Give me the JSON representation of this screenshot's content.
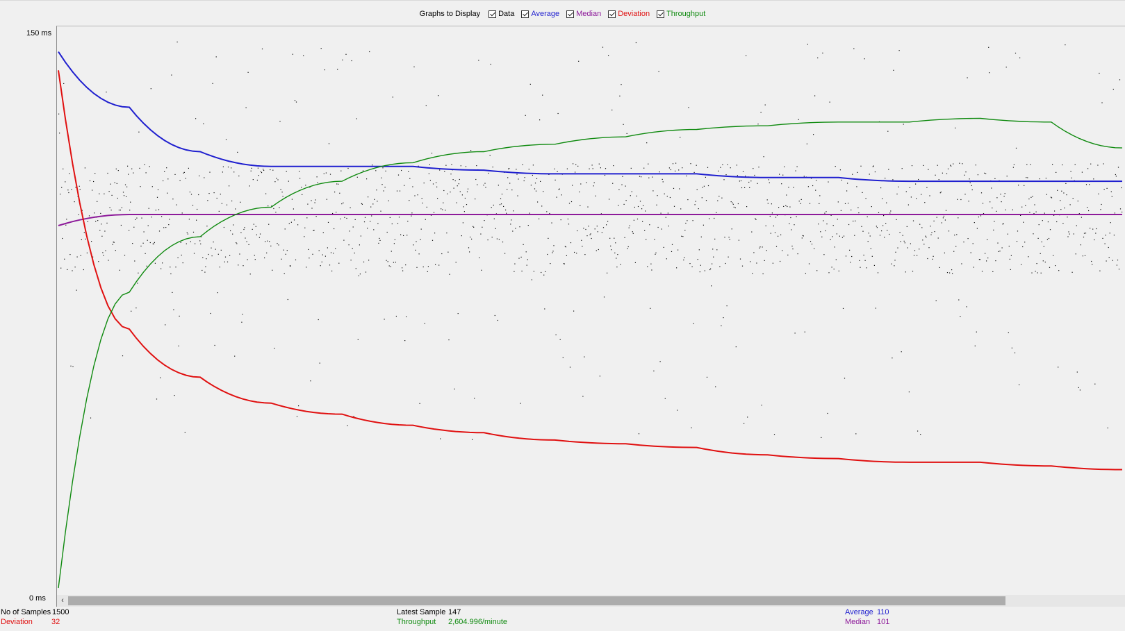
{
  "legend": {
    "title": "Graphs to Display",
    "items": [
      {
        "label": "Data",
        "checked": true,
        "color": "#000000"
      },
      {
        "label": "Average",
        "checked": true,
        "color": "#1f1fcf"
      },
      {
        "label": "Median",
        "checked": true,
        "color": "#8d1a9a"
      },
      {
        "label": "Deviation",
        "checked": true,
        "color": "#e01010"
      },
      {
        "label": "Throughput",
        "checked": true,
        "color": "#0f8a0f"
      }
    ]
  },
  "axis": {
    "y_top": "150  ms",
    "y_bottom": "0  ms"
  },
  "scrollbar": {
    "left_arrow": "‹"
  },
  "stats": {
    "samples_label": "No of Samples",
    "samples_value": "1500",
    "deviation_label": "Deviation",
    "deviation_value": "32",
    "latest_label": "Latest Sample",
    "latest_value": "147",
    "throughput_label": "Throughput",
    "throughput_value": "2,604.996/minute",
    "average_label": "Average",
    "average_value": "110",
    "median_label": "Median",
    "median_value": "101"
  },
  "chart_data": {
    "type": "scatter",
    "ylim": [
      0,
      150
    ],
    "x": [
      0,
      100,
      200,
      300,
      400,
      500,
      600,
      700,
      800,
      900,
      1000,
      1100,
      1200,
      1300,
      1400,
      1500
    ],
    "series": [
      {
        "name": "Average",
        "color": "#1f1fcf",
        "values": [
          145,
          130,
          118,
          114,
          114,
          114,
          113,
          112,
          112,
          112,
          111,
          111,
          110,
          110,
          110,
          110
        ]
      },
      {
        "name": "Median",
        "color": "#8d1a9a",
        "values": [
          98,
          101,
          101,
          101,
          101,
          101,
          101,
          101,
          101,
          101,
          101,
          101,
          101,
          101,
          101,
          101
        ]
      },
      {
        "name": "Deviation",
        "color": "#e01010",
        "values": [
          140,
          70,
          57,
          50,
          47,
          44,
          42,
          40,
          39,
          38,
          36,
          35,
          34,
          34,
          33,
          32
        ]
      },
      {
        "name": "Throughput",
        "color": "#0f8a0f",
        "values": [
          0,
          80,
          95,
          103,
          110,
          115,
          118,
          120,
          122,
          124,
          125,
          126,
          126,
          127,
          126,
          119
        ]
      }
    ],
    "data_points_band": [
      85,
      115
    ]
  }
}
